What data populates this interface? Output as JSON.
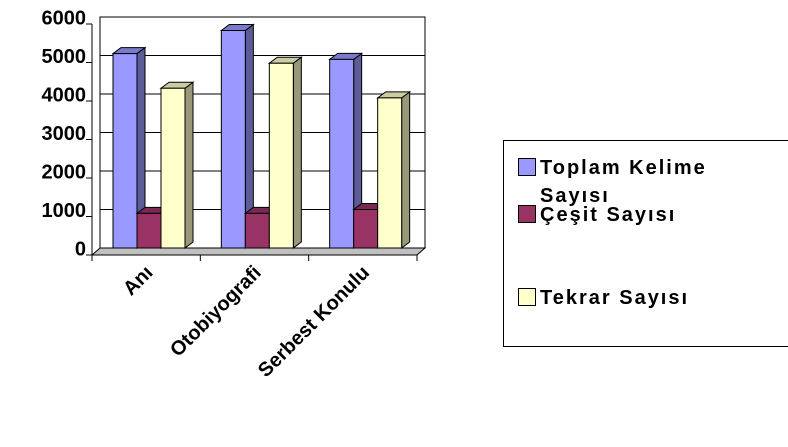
{
  "chart_data": {
    "type": "bar3d",
    "categories": [
      "Anı",
      "Otobiyografi",
      "Serbest Konulu"
    ],
    "series": [
      {
        "name": "Toplam Kelime Sayısı",
        "color": "#9999ff",
        "values": [
          5050,
          5650,
          4900
        ]
      },
      {
        "name": "Çeşit Sayısı",
        "color": "#993366",
        "values": [
          900,
          900,
          1000
        ]
      },
      {
        "name": "Tekrar Sayısı",
        "color": "#ffffcc",
        "values": [
          4150,
          4800,
          3900
        ]
      }
    ],
    "ylim": [
      0,
      6000
    ],
    "yticks": [
      0,
      1000,
      2000,
      3000,
      4000,
      5000,
      6000
    ],
    "grid": true,
    "legend": "right"
  }
}
